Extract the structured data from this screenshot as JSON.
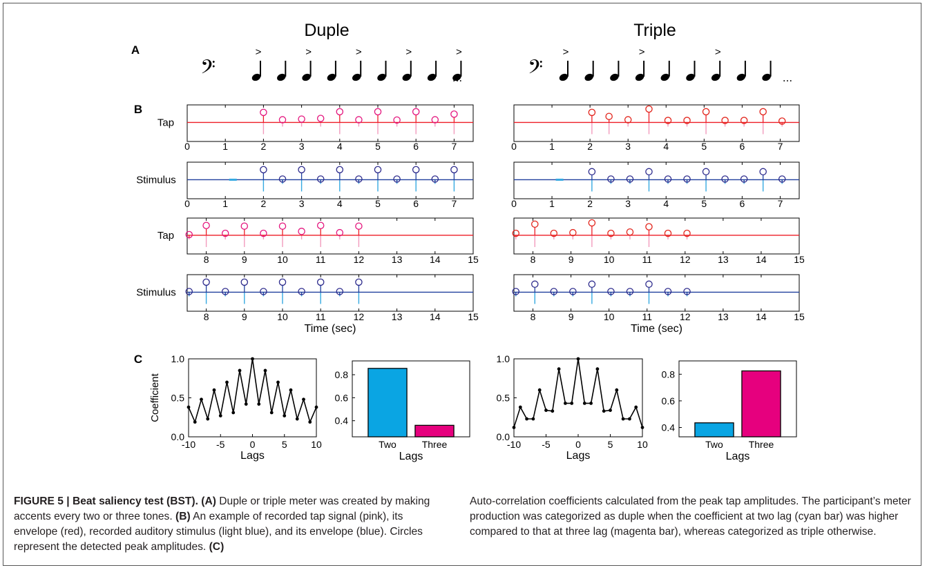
{
  "figure": {
    "columns": [
      {
        "id": "duple",
        "title": "Duple",
        "accent_every": 2
      },
      {
        "id": "triple",
        "title": "Triple",
        "accent_every": 3
      }
    ],
    "panel_labels": {
      "a": "A",
      "b": "B",
      "c": "C"
    },
    "notation": {
      "clef": "𝄢",
      "accent": ">",
      "ellipsis": "..."
    },
    "row_labels": {
      "tap": "Tap",
      "stimulus": "Stimulus"
    },
    "time_axis_label": "Time (sec)",
    "colors": {
      "tap_signal": "#f29bbd",
      "tap_envelope": "#ee1c25",
      "tap_circle_duple": "#e4147d",
      "tap_circle_triple": "#e2231a",
      "stimulus_signal": "#35a9e1",
      "stimulus_envelope": "#1f3f9d",
      "stimulus_circle": "#2c2a8c",
      "two_bar": "#0aa5e3",
      "three_bar": "#e6007e"
    }
  },
  "chart_data": [
    {
      "id": "duple-tap-1",
      "type": "stem",
      "title": "",
      "xlabel": "",
      "ylabel": "Tap",
      "xlim": [
        0,
        7.5
      ],
      "xticks": [
        0,
        1,
        2,
        3,
        4,
        5,
        6,
        7
      ],
      "points": [
        {
          "x": 2.0,
          "y": 0.75
        },
        {
          "x": 2.5,
          "y": 0.2
        },
        {
          "x": 3.0,
          "y": 0.25
        },
        {
          "x": 3.5,
          "y": 0.3
        },
        {
          "x": 4.0,
          "y": 0.8
        },
        {
          "x": 4.5,
          "y": 0.2
        },
        {
          "x": 5.0,
          "y": 0.8
        },
        {
          "x": 5.5,
          "y": 0.18
        },
        {
          "x": 6.0,
          "y": 0.8
        },
        {
          "x": 6.5,
          "y": 0.2
        },
        {
          "x": 7.0,
          "y": 0.62
        }
      ]
    },
    {
      "id": "duple-stim-1",
      "type": "stem",
      "title": "",
      "xlabel": "",
      "ylabel": "Stimulus",
      "xlim": [
        0,
        7.5
      ],
      "xticks": [
        0,
        1,
        2,
        3,
        4,
        5,
        6,
        7
      ],
      "points": [
        {
          "x": 2.0,
          "y": 0.75
        },
        {
          "x": 2.5,
          "y": 0.05
        },
        {
          "x": 3.0,
          "y": 0.75
        },
        {
          "x": 3.5,
          "y": 0.05
        },
        {
          "x": 4.0,
          "y": 0.75
        },
        {
          "x": 4.5,
          "y": 0.05
        },
        {
          "x": 5.0,
          "y": 0.75
        },
        {
          "x": 5.5,
          "y": 0.05
        },
        {
          "x": 6.0,
          "y": 0.75
        },
        {
          "x": 6.5,
          "y": 0.05
        },
        {
          "x": 7.0,
          "y": 0.75
        }
      ]
    },
    {
      "id": "duple-tap-2",
      "type": "stem",
      "title": "",
      "xlabel": "",
      "ylabel": "Tap",
      "xlim": [
        7.5,
        15
      ],
      "xticks": [
        8,
        9,
        10,
        11,
        12,
        13,
        14,
        15
      ],
      "points": [
        {
          "x": 7.55,
          "y": 0.05
        },
        {
          "x": 8.0,
          "y": 0.75
        },
        {
          "x": 8.5,
          "y": 0.15
        },
        {
          "x": 9.0,
          "y": 0.7
        },
        {
          "x": 9.5,
          "y": 0.15
        },
        {
          "x": 10.0,
          "y": 0.7
        },
        {
          "x": 10.5,
          "y": 0.3
        },
        {
          "x": 11.0,
          "y": 0.75
        },
        {
          "x": 11.5,
          "y": 0.2
        },
        {
          "x": 12.0,
          "y": 0.7
        }
      ]
    },
    {
      "id": "duple-stim-2",
      "type": "stem",
      "title": "",
      "xlabel": "Time (sec)",
      "ylabel": "Stimulus",
      "xlim": [
        7.5,
        15
      ],
      "xticks": [
        8,
        9,
        10,
        11,
        12,
        13,
        14,
        15
      ],
      "points": [
        {
          "x": 7.55,
          "y": 0.05
        },
        {
          "x": 8.0,
          "y": 0.75
        },
        {
          "x": 8.5,
          "y": 0.05
        },
        {
          "x": 9.0,
          "y": 0.75
        },
        {
          "x": 9.5,
          "y": 0.05
        },
        {
          "x": 10.0,
          "y": 0.75
        },
        {
          "x": 10.5,
          "y": 0.05
        },
        {
          "x": 11.0,
          "y": 0.75
        },
        {
          "x": 11.5,
          "y": 0.05
        },
        {
          "x": 12.0,
          "y": 0.75
        }
      ]
    },
    {
      "id": "triple-tap-1",
      "type": "stem",
      "title": "",
      "xlabel": "",
      "ylabel": "",
      "xlim": [
        0,
        7.5
      ],
      "xticks": [
        0,
        1,
        2,
        3,
        4,
        5,
        6,
        7
      ],
      "points": [
        {
          "x": 2.05,
          "y": 0.75
        },
        {
          "x": 2.5,
          "y": 0.45
        },
        {
          "x": 3.0,
          "y": 0.2
        },
        {
          "x": 3.55,
          "y": 1.0
        },
        {
          "x": 4.05,
          "y": 0.15
        },
        {
          "x": 4.55,
          "y": 0.15
        },
        {
          "x": 5.05,
          "y": 0.8
        },
        {
          "x": 5.55,
          "y": 0.15
        },
        {
          "x": 6.05,
          "y": 0.15
        },
        {
          "x": 6.55,
          "y": 0.8
        },
        {
          "x": 7.05,
          "y": 0.1
        }
      ]
    },
    {
      "id": "triple-stim-1",
      "type": "stem",
      "title": "",
      "xlabel": "",
      "ylabel": "",
      "xlim": [
        0,
        7.5
      ],
      "xticks": [
        0,
        1,
        2,
        3,
        4,
        5,
        6,
        7
      ],
      "points": [
        {
          "x": 2.05,
          "y": 0.6
        },
        {
          "x": 2.55,
          "y": 0.05
        },
        {
          "x": 3.05,
          "y": 0.05
        },
        {
          "x": 3.55,
          "y": 0.6
        },
        {
          "x": 4.05,
          "y": 0.05
        },
        {
          "x": 4.55,
          "y": 0.05
        },
        {
          "x": 5.05,
          "y": 0.6
        },
        {
          "x": 5.55,
          "y": 0.05
        },
        {
          "x": 6.05,
          "y": 0.05
        },
        {
          "x": 6.55,
          "y": 0.6
        },
        {
          "x": 7.05,
          "y": 0.05
        }
      ]
    },
    {
      "id": "triple-tap-2",
      "type": "stem",
      "title": "",
      "xlabel": "",
      "ylabel": "",
      "xlim": [
        7.5,
        15
      ],
      "xticks": [
        8,
        9,
        10,
        11,
        12,
        13,
        14,
        15
      ],
      "points": [
        {
          "x": 7.55,
          "y": 0.15
        },
        {
          "x": 8.05,
          "y": 0.85
        },
        {
          "x": 8.55,
          "y": 0.15
        },
        {
          "x": 9.05,
          "y": 0.2
        },
        {
          "x": 9.55,
          "y": 0.95
        },
        {
          "x": 10.05,
          "y": 0.15
        },
        {
          "x": 10.55,
          "y": 0.25
        },
        {
          "x": 11.05,
          "y": 0.65
        },
        {
          "x": 11.55,
          "y": 0.15
        },
        {
          "x": 12.05,
          "y": 0.15
        }
      ]
    },
    {
      "id": "triple-stim-2",
      "type": "stem",
      "title": "",
      "xlabel": "Time (sec)",
      "ylabel": "",
      "xlim": [
        7.5,
        15
      ],
      "xticks": [
        8,
        9,
        10,
        11,
        12,
        13,
        14,
        15
      ],
      "points": [
        {
          "x": 7.55,
          "y": 0.05
        },
        {
          "x": 8.05,
          "y": 0.6
        },
        {
          "x": 8.55,
          "y": 0.05
        },
        {
          "x": 9.05,
          "y": 0.05
        },
        {
          "x": 9.55,
          "y": 0.6
        },
        {
          "x": 10.05,
          "y": 0.05
        },
        {
          "x": 10.55,
          "y": 0.05
        },
        {
          "x": 11.05,
          "y": 0.6
        },
        {
          "x": 11.55,
          "y": 0.05
        },
        {
          "x": 12.05,
          "y": 0.05
        }
      ]
    },
    {
      "id": "duple-acf",
      "type": "line",
      "title": "",
      "xlabel": "Lags",
      "ylabel": "Coefficient",
      "xlim": [
        -10,
        10
      ],
      "ylim": [
        0,
        1
      ],
      "xticks": [
        -10,
        -5,
        0,
        5,
        10
      ],
      "yticks": [
        0,
        0.5,
        1
      ],
      "ytick_labels": [
        "0.0",
        "0.5",
        "1.0"
      ],
      "x": [
        -10,
        -9,
        -8,
        -7,
        -6,
        -5,
        -4,
        -3,
        -2,
        -1,
        0,
        1,
        2,
        3,
        4,
        5,
        6,
        7,
        8,
        9,
        10
      ],
      "y": [
        0.38,
        0.19,
        0.48,
        0.23,
        0.6,
        0.27,
        0.7,
        0.31,
        0.85,
        0.42,
        1.0,
        0.42,
        0.85,
        0.31,
        0.7,
        0.27,
        0.6,
        0.23,
        0.48,
        0.19,
        0.38
      ]
    },
    {
      "id": "duple-bar",
      "type": "bar",
      "title": "",
      "xlabel": "Lags",
      "ylabel": "",
      "ylim": [
        0.26,
        0.92
      ],
      "yticks": [
        0.4,
        0.6,
        0.8
      ],
      "categories": [
        "Two",
        "Three"
      ],
      "values": [
        0.855,
        0.36
      ]
    },
    {
      "id": "triple-acf",
      "type": "line",
      "title": "",
      "xlabel": "Lags",
      "ylabel": "",
      "xlim": [
        -10,
        10
      ],
      "ylim": [
        0,
        1
      ],
      "xticks": [
        -10,
        -5,
        0,
        5,
        10
      ],
      "yticks": [
        0,
        0.5,
        1
      ],
      "ytick_labels": [
        "0.0",
        "0.5",
        "1.0"
      ],
      "x": [
        -10,
        -9,
        -8,
        -7,
        -6,
        -5,
        -4,
        -3,
        -2,
        -1,
        0,
        1,
        2,
        3,
        4,
        5,
        6,
        7,
        8,
        9,
        10
      ],
      "y": [
        0.12,
        0.38,
        0.23,
        0.23,
        0.6,
        0.34,
        0.33,
        0.87,
        0.43,
        0.43,
        1.0,
        0.43,
        0.43,
        0.87,
        0.33,
        0.34,
        0.6,
        0.23,
        0.23,
        0.38,
        0.12
      ]
    },
    {
      "id": "triple-bar",
      "type": "bar",
      "title": "",
      "xlabel": "Lags",
      "ylabel": "",
      "ylim": [
        0.33,
        0.9
      ],
      "yticks": [
        0.4,
        0.6,
        0.8
      ],
      "categories": [
        "Two",
        "Three"
      ],
      "values": [
        0.435,
        0.825
      ]
    }
  ],
  "caption": {
    "left": {
      "fig_label": "FIGURE 5 | Beat saliency test (BST).",
      "a_label": "(A)",
      "a_text": " Duple or triple meter was created by making accents every two or three tones. ",
      "b_label": "(B)",
      "b_text": " An example of recorded tap signal (pink), its envelope (red), recorded auditory stimulus (light blue), and its envelope (blue). Circles represent the detected peak amplitudes. ",
      "c_label": "(C)"
    },
    "right": {
      "text": "Auto-correlation coefficients calculated from the peak tap amplitudes. The participant’s meter production was categorized as duple when the coefficient at two lag (cyan bar) was higher compared to that at three lag (magenta bar), whereas categorized as triple otherwise."
    }
  }
}
